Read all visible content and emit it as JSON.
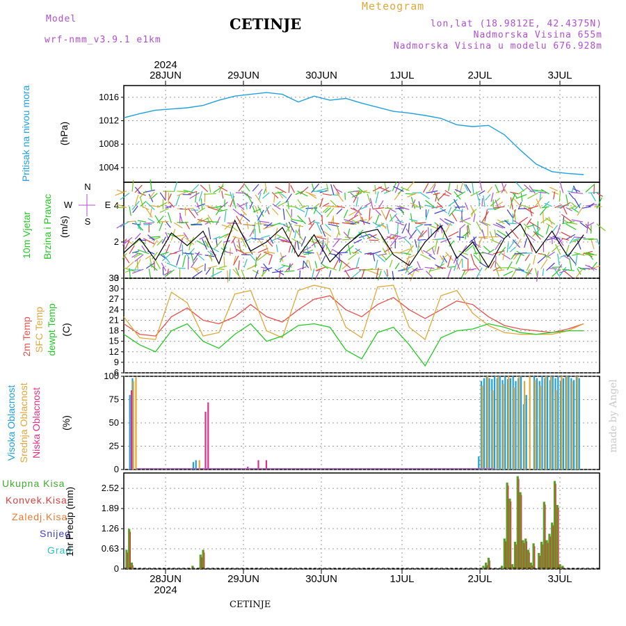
{
  "header": {
    "model_label": "Model",
    "model_name": "wrf-nmm_v3.9.1  e1km",
    "station": "CETINJE",
    "meteogram_label": "Meteogram",
    "lonlat": "lon,lat (18.9812E, 42.4375N)",
    "altitude": "Nadmorska Visina 655m",
    "model_altitude": "Nadmorska Visina u modelu 676.928m",
    "watermark": "made by Angel",
    "footer_station": "CETINJE"
  },
  "colors": {
    "pressure": "#1fa0e0",
    "temp2m": "#e8504a",
    "sfc": "#e0a838",
    "dewpt": "#22c922",
    "model": "#b04fd0",
    "total_precip": "#5a9e2a",
    "conv_precip": "#e03c3c",
    "frozen": "#e87a30",
    "snow": "#3c3cd0",
    "grad": "#30c0c0"
  },
  "chart_data": [
    {
      "type": "line",
      "panel": "pressure",
      "labels": [
        "Pritisak na nivou mora",
        "(hPa)"
      ],
      "y_ticks": [
        1004,
        1008,
        1012,
        1016
      ],
      "ylim": [
        1001.5,
        1018
      ],
      "x_ticks": [
        {
          "day": "28JUN",
          "year": "2024"
        },
        {
          "day": "29JUN"
        },
        {
          "day": "30JUN"
        },
        {
          "day": "1JUL"
        },
        {
          "day": "2JUL"
        },
        {
          "day": "3JUL"
        }
      ],
      "x": [
        0,
        6,
        12,
        18,
        24,
        30,
        36,
        42,
        48,
        54,
        60,
        66,
        72,
        78,
        84,
        90,
        96,
        102,
        108,
        114,
        120,
        126,
        132,
        138,
        144,
        150,
        156,
        162,
        168,
        174
      ],
      "values": [
        1012.5,
        1013.2,
        1013.8,
        1014.0,
        1014.2,
        1014.6,
        1015.5,
        1016.2,
        1016.5,
        1016.8,
        1016.5,
        1015.2,
        1016.2,
        1015.5,
        1015.8,
        1015.0,
        1014.3,
        1013.6,
        1013.3,
        1012.9,
        1012.4,
        1011.3,
        1011.0,
        1011.2,
        1009.6,
        1007.0,
        1004.6,
        1003.3,
        1003.0,
        1002.8
      ]
    },
    {
      "type": "line",
      "panel": "wind",
      "labels": [
        "10m Vjetar",
        "Brzina i Pravac",
        "(m/s)"
      ],
      "compass": {
        "n": "N",
        "s": "S",
        "w": "W",
        "e": "E"
      },
      "y_ticks": [
        0,
        2,
        4
      ],
      "ylim": [
        0,
        5.3
      ],
      "x": [
        0,
        6,
        12,
        18,
        24,
        30,
        36,
        42,
        48,
        54,
        60,
        66,
        72,
        78,
        84,
        90,
        96,
        102,
        108,
        114,
        120,
        126,
        132,
        138,
        144,
        150,
        156,
        162,
        168,
        174
      ],
      "values": [
        1.4,
        2.2,
        1.0,
        2.5,
        1.8,
        2.6,
        0.8,
        3.2,
        1.5,
        2.0,
        2.8,
        1.2,
        2.4,
        0.9,
        1.8,
        2.5,
        2.7,
        1.3,
        0.7,
        2.0,
        2.9,
        1.1,
        2.0,
        0.6,
        2.2,
        3.0,
        1.4,
        2.6,
        1.2,
        2.4
      ]
    },
    {
      "type": "line",
      "panel": "temperature",
      "labels": [
        "2m Temp",
        "SFC Temp",
        "dewpt Temp",
        "(C)"
      ],
      "y_ticks": [
        6,
        9,
        12,
        15,
        18,
        21,
        24,
        27,
        30,
        33
      ],
      "ylim": [
        6,
        33
      ],
      "x": [
        0,
        6,
        12,
        18,
        24,
        30,
        36,
        42,
        48,
        54,
        60,
        66,
        72,
        78,
        84,
        90,
        96,
        102,
        108,
        114,
        120,
        126,
        132,
        138,
        144,
        150,
        156,
        162,
        168,
        174
      ],
      "series": [
        {
          "name": "2m Temp",
          "values": [
            20.0,
            17.0,
            16.5,
            22.0,
            24.5,
            21.0,
            20.0,
            22.0,
            25.5,
            22.0,
            20.5,
            24.0,
            27.0,
            28.0,
            24.0,
            22.0,
            25.5,
            27.5,
            24.0,
            21.5,
            24.0,
            26.5,
            25.5,
            22.0,
            19.5,
            18.5,
            18.0,
            17.5,
            18.5,
            20.0
          ]
        },
        {
          "name": "SFC Temp",
          "values": [
            22.0,
            16.0,
            15.5,
            29.0,
            26.0,
            16.5,
            17.5,
            28.5,
            29.5,
            18.0,
            16.0,
            29.5,
            31.0,
            30.0,
            19.0,
            16.0,
            30.5,
            31.0,
            19.0,
            15.5,
            28.0,
            29.5,
            23.0,
            19.5,
            17.5,
            17.0,
            17.0,
            17.0,
            18.0,
            20.0
          ]
        },
        {
          "name": "dewpt Temp",
          "values": [
            17.0,
            14.0,
            12.0,
            18.0,
            20.0,
            15.0,
            13.0,
            17.0,
            20.0,
            15.0,
            16.5,
            19.5,
            20.0,
            19.0,
            12.5,
            10.0,
            17.5,
            19.0,
            14.0,
            8.0,
            16.0,
            18.0,
            18.5,
            20.0,
            19.0,
            17.5,
            17.0,
            17.5,
            18.0,
            18.0
          ]
        }
      ]
    },
    {
      "type": "bar",
      "panel": "clouds",
      "labels": [
        "Visoka Oblacnost",
        "Srednja Oblacnost",
        "Niska Oblacnost",
        "(%)"
      ],
      "y_ticks": [
        0,
        25,
        50,
        75,
        100
      ],
      "ylim": [
        0,
        100
      ],
      "series": [
        {
          "name": "Visoka Oblacnost",
          "x": [
            2,
            3,
            4,
            26,
            27,
            134,
            135,
            136,
            137,
            138,
            139,
            140,
            141,
            142,
            143,
            144,
            145,
            146,
            147,
            148,
            149,
            150,
            151,
            152,
            155,
            156,
            157,
            158,
            159,
            160,
            161,
            162,
            163,
            164,
            165,
            166,
            167,
            168,
            169,
            170,
            171,
            172
          ],
          "values": [
            80,
            98,
            0,
            8,
            10,
            14,
            95,
            98,
            100,
            98,
            97,
            100,
            98,
            100,
            96,
            100,
            97,
            98,
            100,
            95,
            98,
            100,
            70,
            80,
            100,
            98,
            95,
            100,
            98,
            100,
            96,
            100,
            98,
            100,
            95,
            98,
            100,
            100,
            98,
            96,
            100,
            98
          ]
        },
        {
          "name": "Srednja Oblacnost",
          "x": [
            3,
            4,
            28,
            135,
            137,
            139,
            141,
            143,
            145,
            147,
            149,
            151,
            153,
            155,
            157,
            159,
            161,
            163,
            165,
            167,
            169,
            171
          ],
          "values": [
            95,
            99,
            10,
            90,
            100,
            85,
            100,
            92,
            100,
            88,
            100,
            95,
            100,
            96,
            90,
            100,
            100,
            85,
            100,
            100,
            95,
            100
          ]
        },
        {
          "name": "Niska Oblacnost",
          "x": [
            2,
            30,
            31,
            46,
            50,
            53
          ],
          "values": [
            85,
            62,
            72,
            3,
            10,
            10
          ]
        }
      ]
    },
    {
      "type": "bar",
      "panel": "precipitation",
      "labels": [
        "Ukupna Kisa",
        "Konvek.Kisa",
        "Zaledj.Kisa",
        "Snijeg",
        "Grad",
        "1hr Precip (mm)"
      ],
      "y_ticks": [
        0,
        0.63,
        1.26,
        1.89,
        2.52
      ],
      "ylim": [
        0,
        3.0
      ],
      "x": [
        1,
        2,
        3,
        26,
        29,
        30,
        136,
        137,
        138,
        143,
        144,
        145,
        146,
        147,
        148,
        149,
        150,
        151,
        152,
        153,
        154,
        155,
        157,
        158,
        159,
        160,
        161,
        162,
        163,
        164,
        165,
        166
      ],
      "values": [
        0.6,
        1.25,
        0.2,
        0.1,
        0.45,
        0.6,
        0.1,
        0.2,
        0.35,
        0.1,
        0.95,
        2.7,
        2.2,
        0.15,
        0.85,
        2.9,
        2.4,
        0.9,
        0.95,
        0.6,
        0.2,
        0.8,
        0.5,
        0.85,
        2.1,
        0.9,
        1.1,
        1.45,
        2.75,
        2.0,
        0.15,
        0.1
      ]
    }
  ]
}
